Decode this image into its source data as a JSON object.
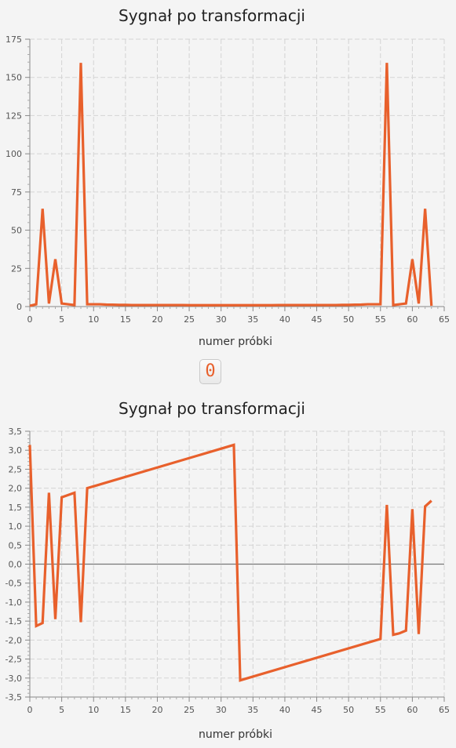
{
  "button": {
    "label": "0"
  },
  "colors": {
    "series": "#e8602c",
    "grid": "#d3d3d3",
    "background": "#f4f4f4"
  },
  "chart_data": [
    {
      "type": "line",
      "title": "Sygnał po transformacji",
      "xlabel": "numer próbki",
      "ylabel": "",
      "xlim": [
        0,
        65
      ],
      "ylim": [
        0,
        175
      ],
      "xticks": [
        0,
        5,
        10,
        15,
        20,
        25,
        30,
        35,
        40,
        45,
        50,
        55,
        60,
        65
      ],
      "yticks": [
        0,
        25,
        50,
        75,
        100,
        125,
        150,
        175
      ],
      "grid": true,
      "x": [
        0,
        1,
        2,
        3,
        4,
        5,
        6,
        7,
        8,
        9,
        10,
        11,
        12,
        13,
        14,
        15,
        16,
        17,
        18,
        19,
        20,
        21,
        22,
        23,
        24,
        25,
        26,
        27,
        28,
        29,
        30,
        31,
        32,
        33,
        34,
        35,
        36,
        37,
        38,
        39,
        40,
        41,
        42,
        43,
        44,
        45,
        46,
        47,
        48,
        49,
        50,
        51,
        52,
        53,
        54,
        55,
        56,
        57,
        58,
        59,
        60,
        61,
        62,
        63
      ],
      "series": [
        {
          "values": [
            0.5,
            1.5,
            64,
            2,
            31,
            2,
            1.5,
            1,
            159.5,
            1.5,
            1.5,
            1.5,
            1.3,
            1.2,
            1.1,
            1.1,
            1,
            1,
            1,
            1,
            1,
            1,
            1,
            1,
            1,
            0.9,
            0.9,
            0.9,
            0.9,
            0.9,
            0.9,
            0.9,
            0.9,
            0.9,
            0.9,
            0.9,
            0.9,
            0.9,
            0.9,
            1,
            1,
            1,
            1,
            1,
            1,
            1,
            1,
            1,
            1,
            1.1,
            1.1,
            1.2,
            1.3,
            1.5,
            1.5,
            1.5,
            159.5,
            1,
            1.5,
            2,
            31,
            2,
            64,
            0.5
          ]
        }
      ]
    },
    {
      "type": "line",
      "title": "Sygnał po transformacji",
      "xlabel": "numer próbki",
      "ylabel": "",
      "xlim": [
        0,
        65
      ],
      "ylim": [
        -3.5,
        3.5
      ],
      "xticks": [
        0,
        5,
        10,
        15,
        20,
        25,
        30,
        35,
        40,
        45,
        50,
        55,
        60,
        65
      ],
      "yticks": [
        -3.5,
        -3.0,
        -2.5,
        -2.0,
        -1.5,
        -1.0,
        -0.5,
        0.0,
        0.5,
        1.0,
        1.5,
        2.0,
        2.5,
        3.0,
        3.5
      ],
      "ytick_labels": [
        "-3,5",
        "-3,0",
        "-2,5",
        "-2,0",
        "-1,5",
        "-1,0",
        "-0,5",
        "0,0",
        "0,5",
        "1,0",
        "1,5",
        "2,0",
        "2,5",
        "3,0",
        "3,5"
      ],
      "grid": true,
      "x": [
        0,
        1,
        2,
        3,
        4,
        5,
        6,
        7,
        8,
        9,
        32,
        33,
        55,
        56,
        57,
        58,
        59,
        60,
        61,
        62,
        63
      ],
      "series": [
        {
          "values": [
            3.14,
            -1.63,
            -1.55,
            1.88,
            -1.45,
            1.76,
            1.82,
            1.88,
            -1.53,
            2.0,
            3.14,
            -3.06,
            -1.97,
            1.56,
            -1.86,
            -1.82,
            -1.75,
            1.45,
            -1.84,
            1.52,
            1.67
          ]
        }
      ]
    }
  ]
}
